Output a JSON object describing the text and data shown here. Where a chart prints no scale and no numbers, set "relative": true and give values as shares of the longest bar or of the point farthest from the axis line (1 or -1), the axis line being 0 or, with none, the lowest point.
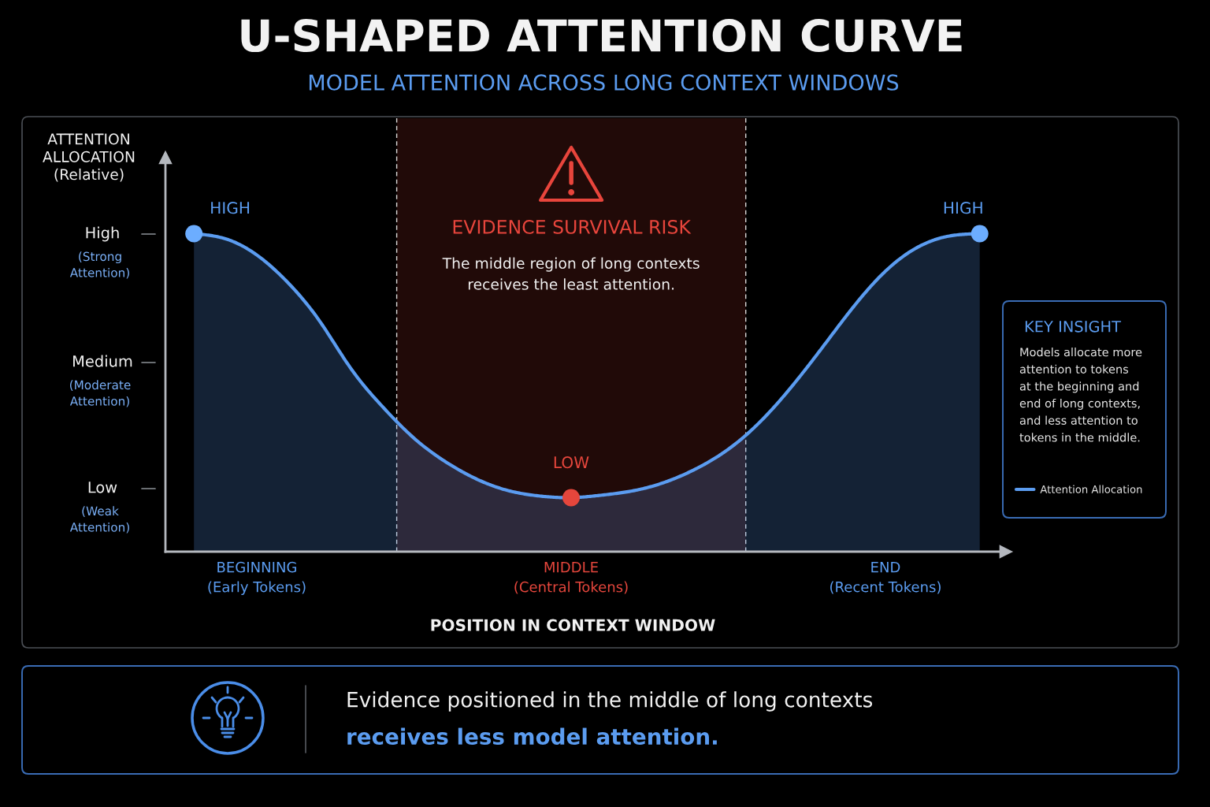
{
  "chart_data": {
    "type": "area",
    "title": "U-SHAPED ATTENTION CURVE",
    "subtitle": "MODEL ATTENTION ACROSS LONG CONTEXT WINDOWS",
    "xlabel": "POSITION IN CONTEXT WINDOW",
    "ylabel": "ATTENTION\nALLOCATION\n(Relative)",
    "relative": true,
    "categories": [
      null,
      null,
      "BEGINNING\n(Early Tokens)",
      null,
      null,
      null,
      null,
      null,
      null,
      null,
      null,
      null,
      "MIDDLE\n(Central Tokens)",
      null,
      null,
      null,
      null,
      null,
      null,
      null,
      null,
      null,
      "END\n(Recent Tokens)",
      null,
      null,
      null
    ],
    "series": [
      {
        "name": "Attention Allocation",
        "color": "#5b9cf0",
        "values": [
          1.0,
          0.984,
          0.933,
          0.845,
          0.725,
          0.575,
          0.456,
          0.357,
          0.283,
          0.228,
          0.192,
          0.175,
          0.17,
          0.178,
          0.192,
          0.219,
          0.262,
          0.322,
          0.407,
          0.517,
          0.643,
          0.772,
          0.882,
          0.956,
          0.992,
          1.0
        ]
      },
      {
        "type": "scatter",
        "marker": "circle",
        "values": [
          1.0,
          null,
          null,
          null,
          null,
          null,
          null,
          null,
          null,
          null,
          null,
          null,
          0.17,
          null,
          null,
          null,
          null,
          null,
          null,
          null,
          null,
          null,
          null,
          null,
          null,
          1.0
        ],
        "colors": [
          "#6cadff",
          null,
          null,
          null,
          null,
          null,
          null,
          null,
          null,
          null,
          null,
          null,
          "#e5463c",
          null,
          null,
          null,
          null,
          null,
          null,
          null,
          null,
          null,
          null,
          null,
          null,
          "#6cadff"
        ]
      }
    ],
    "annotations": [
      "HIGH",
      {
        "text": "LOW",
        "x": "MIDDLE\n(Central Tokens)",
        "y": 0.17
      },
      "HIGH",
      "High\n(Strong\nAttention)",
      "Medium\n(Moderate\nAttention)",
      "Low\n(Weak\nAttention)",
      "EVIDENCE SURVIVAL RISK",
      "The middle region of long contexts\nreceives the least attention.",
      "KEY INSIGHT",
      "Models allocate more\nattention to tokens\nat the beginning and\nend of long contexts,\nand less attention to\ntokens in the middle.",
      "Evidence positioned in the middle of long contexts",
      "receives less model attention."
    ],
    "legend": "right",
    "grid": false
  }
}
